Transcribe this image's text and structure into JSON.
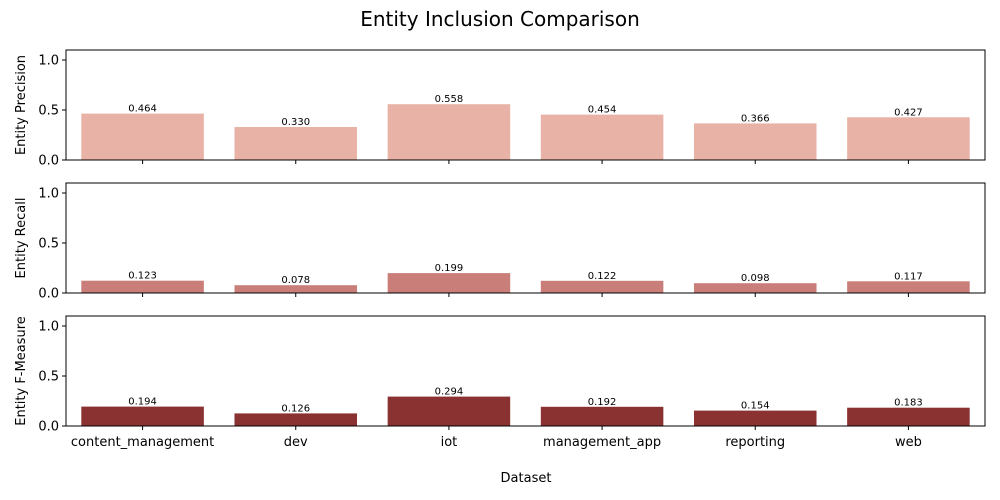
{
  "chart_data": {
    "type": "bar",
    "title": "Entity Inclusion Comparison",
    "xlabel": "Dataset",
    "categories": [
      "content_management",
      "dev",
      "iot",
      "management_app",
      "reporting",
      "web"
    ],
    "ylim": [
      0,
      1.1
    ],
    "yticks": [
      "0.0",
      "0.5",
      "1.0"
    ],
    "grid": false,
    "panels": [
      {
        "ylabel": "Entity Precision",
        "color": "#e8b2a6",
        "values": [
          0.464,
          0.33,
          0.558,
          0.454,
          0.366,
          0.427
        ],
        "labels": [
          "0.464",
          "0.330",
          "0.558",
          "0.454",
          "0.366",
          "0.427"
        ]
      },
      {
        "ylabel": "Entity Recall",
        "color": "#c97e7a",
        "values": [
          0.123,
          0.078,
          0.199,
          0.122,
          0.098,
          0.117
        ],
        "labels": [
          "0.123",
          "0.078",
          "0.199",
          "0.122",
          "0.098",
          "0.117"
        ]
      },
      {
        "ylabel": "Entity F-Measure",
        "color": "#8a3232",
        "values": [
          0.194,
          0.126,
          0.294,
          0.192,
          0.154,
          0.183
        ],
        "labels": [
          "0.194",
          "0.126",
          "0.294",
          "0.192",
          "0.154",
          "0.183"
        ]
      }
    ]
  }
}
